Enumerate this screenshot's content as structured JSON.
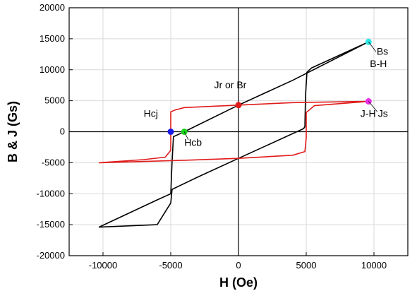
{
  "chart_data": {
    "type": "line",
    "title": "",
    "xlabel": "H  (Oe)",
    "ylabel": "B & J  (Gs)",
    "xlim": [
      -12500,
      12500
    ],
    "ylim": [
      -20000,
      20000
    ],
    "x_ticks": [
      -10000,
      -5000,
      0,
      5000,
      10000
    ],
    "y_ticks": [
      -20000,
      -15000,
      -10000,
      -5000,
      0,
      5000,
      10000,
      15000,
      20000
    ],
    "x_tick_labels": [
      "-10000",
      "-5000",
      "0",
      "5000",
      "10000"
    ],
    "y_tick_labels": [
      "-20000",
      "-15000",
      "-10000",
      "-5000",
      "0",
      "5000",
      "10000",
      "15000",
      "20000"
    ],
    "grid": true,
    "series": [
      {
        "name": "B-H",
        "color": "#000000",
        "upper_branch": [
          [
            9600,
            14500
          ],
          [
            7000,
            11900
          ],
          [
            5400,
            10300
          ],
          [
            5050,
            9600
          ],
          [
            4950,
            5800
          ],
          [
            4900,
            800
          ],
          [
            4800,
            500
          ],
          [
            2000,
            -2300
          ],
          [
            0,
            -4300
          ],
          [
            -3000,
            -7300
          ],
          [
            -4900,
            -9300
          ],
          [
            -5000,
            -11500
          ],
          [
            -6000,
            -15000
          ],
          [
            -10300,
            -15400
          ]
        ],
        "lower_branch": [
          [
            -10300,
            -15400
          ],
          [
            -6000,
            -11000
          ],
          [
            -5000,
            -10000
          ],
          [
            -4900,
            -4800
          ],
          [
            -4800,
            -800
          ],
          [
            -4000,
            0
          ],
          [
            0,
            4300
          ],
          [
            4000,
            8300
          ],
          [
            9600,
            14500
          ]
        ]
      },
      {
        "name": "J-H",
        "color": "#e01b1b",
        "upper_branch": [
          [
            9600,
            4900
          ],
          [
            4000,
            4700
          ],
          [
            0,
            4300
          ],
          [
            -4000,
            3900
          ],
          [
            -4700,
            3500
          ],
          [
            -5000,
            3200
          ],
          [
            -5000,
            -3000
          ],
          [
            -5400,
            -4100
          ],
          [
            -7000,
            -4500
          ],
          [
            -10300,
            -5000
          ]
        ],
        "lower_branch": [
          [
            -10300,
            -5000
          ],
          [
            -4000,
            -4600
          ],
          [
            0,
            -4300
          ],
          [
            4000,
            -3800
          ],
          [
            4900,
            -3200
          ],
          [
            5000,
            -1000
          ],
          [
            5000,
            3100
          ],
          [
            5600,
            4200
          ],
          [
            9600,
            4900
          ]
        ]
      }
    ],
    "points": [
      {
        "label": "Bs",
        "x": 9600,
        "y": 14500,
        "color": "#2ee8e8"
      },
      {
        "label": "Js",
        "x": 9600,
        "y": 4900,
        "color": "#e82ee8"
      },
      {
        "label": "Jr or Br",
        "x": 0,
        "y": 4300,
        "color": "#e01b1b"
      },
      {
        "label": "Hcj",
        "x": -5000,
        "y": 0,
        "color": "#1a1ae8"
      },
      {
        "label": "Hcb",
        "x": -4000,
        "y": 0,
        "color": "#1ad41a"
      }
    ],
    "annotations": [
      {
        "text": "B-H",
        "x": 9700,
        "y": 10400
      },
      {
        "text": "J-H",
        "x": 9000,
        "y": 2400
      },
      {
        "text": "Bs",
        "x": 10200,
        "y": 12400
      },
      {
        "text": "Js",
        "x": 10300,
        "y": 2400
      },
      {
        "text": "Jr or Br",
        "x": -1800,
        "y": 7000
      },
      {
        "text": "Hcj",
        "x": -7000,
        "y": 2400
      },
      {
        "text": "Hcb",
        "x": -4000,
        "y": -2300
      }
    ]
  }
}
